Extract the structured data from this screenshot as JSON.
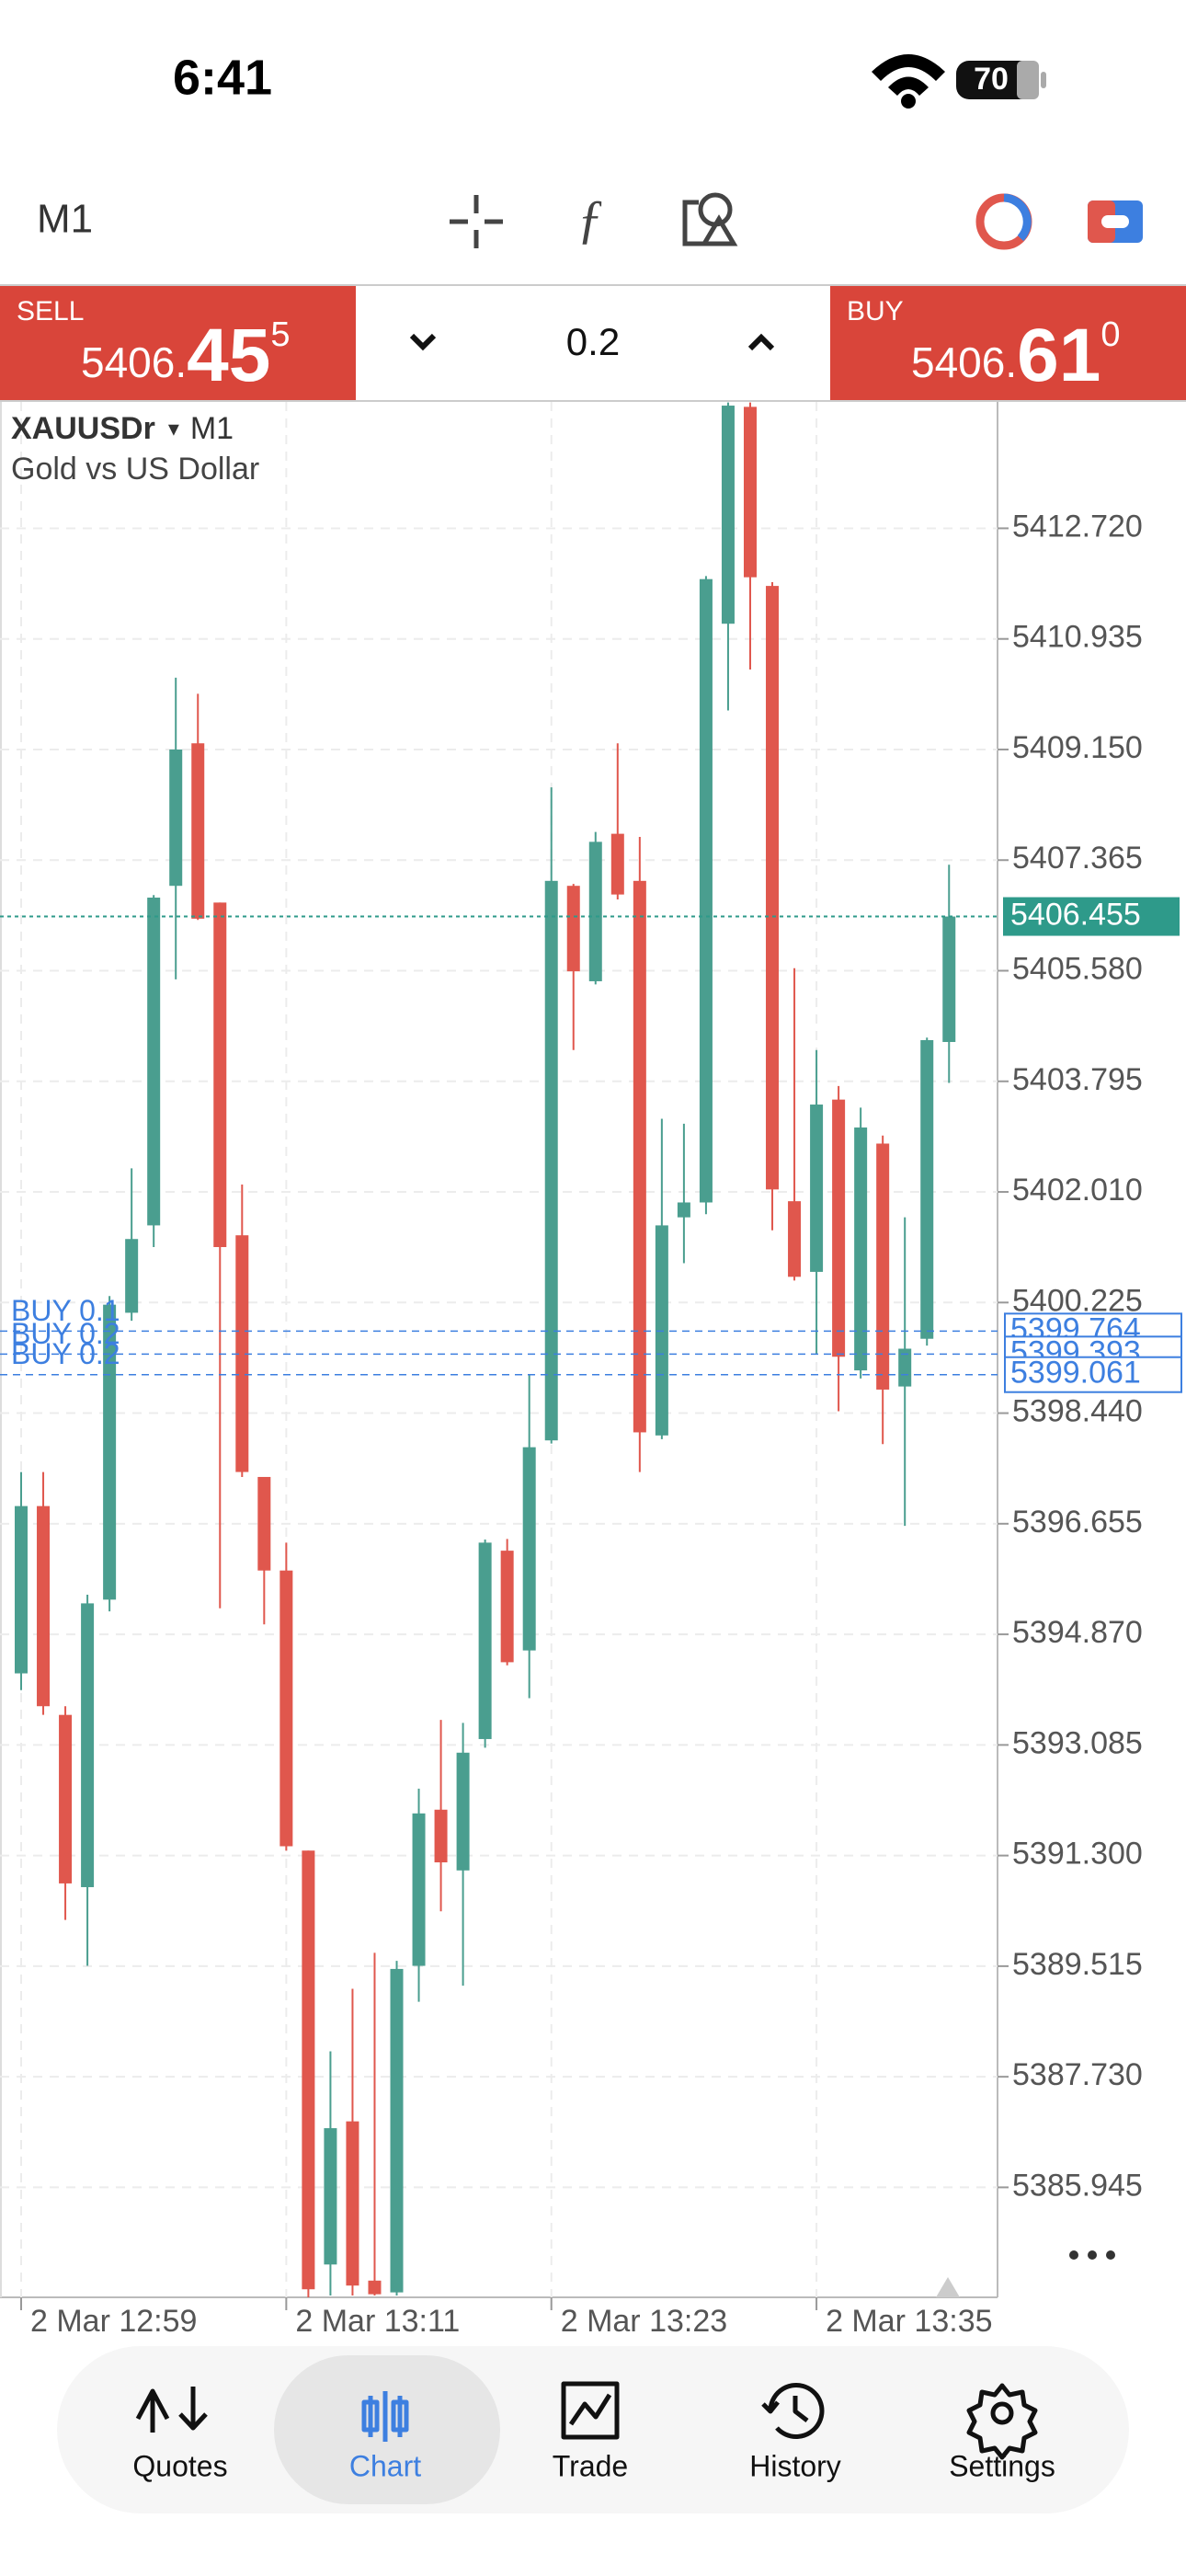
{
  "status_bar": {
    "time": "6:41",
    "battery": "70"
  },
  "toolbar": {
    "timeframe": "M1"
  },
  "trade_panel": {
    "sell": {
      "label": "SELL",
      "price_main": "5406.",
      "price_big": "45",
      "price_sup": "5"
    },
    "volume": "0.2",
    "buy": {
      "label": "BUY",
      "price_main": "5406.",
      "price_big": "61",
      "price_sup": "0"
    }
  },
  "chart_data": {
    "type": "candlestick",
    "symbol": "XAUUSDr",
    "symbol_marker": "▾",
    "timeframe": "M1",
    "description": "Gold vs US Dollar",
    "categories": [
      "2 Mar 12:59",
      null,
      null,
      null,
      null,
      null,
      null,
      null,
      null,
      null,
      null,
      null,
      "2 Mar 13:11",
      null,
      null,
      null,
      null,
      null,
      null,
      null,
      null,
      null,
      null,
      null,
      "2 Mar 13:23",
      null,
      null,
      null,
      null,
      null,
      null,
      null,
      null,
      null,
      null,
      null,
      "2 Mar 13:35",
      null,
      null,
      null,
      null,
      null,
      null
    ],
    "open": [
      5394.24,
      5396.94,
      5393.57,
      5390.79,
      5395.43,
      5400.06,
      5401.47,
      5406.95,
      5409.25,
      5406.68,
      5401.31,
      5397.41,
      5395.9,
      5391.38,
      5384.7,
      5387.01,
      5384.44,
      5384.25,
      5389.52,
      5392.04,
      5391.06,
      5393.18,
      5396.22,
      5394.61,
      5398.0,
      5406.95,
      5405.41,
      5407.79,
      5407.03,
      5398.08,
      5401.6,
      5401.84,
      5411.18,
      5414.68,
      5411.79,
      5401.86,
      5400.72,
      5403.5,
      5399.13,
      5402.79,
      5398.87,
      5399.64,
      5404.43
    ],
    "high": [
      5397.49,
      5397.49,
      5393.71,
      5395.51,
      5400.33,
      5402.39,
      5406.8,
      5410.31,
      5410.05,
      5406.68,
      5402.13,
      5397.41,
      5396.35,
      5391.38,
      5388.14,
      5389.15,
      5389.73,
      5389.6,
      5392.38,
      5393.49,
      5393.44,
      5396.4,
      5396.41,
      5399.06,
      5408.54,
      5406.98,
      5407.82,
      5409.25,
      5407.74,
      5403.19,
      5403.11,
      5411.95,
      5414.75,
      5414.75,
      5411.85,
      5405.62,
      5404.3,
      5403.72,
      5403.37,
      5402.92,
      5401.6,
      5404.5,
      5407.29
    ],
    "low": [
      5393.97,
      5393.57,
      5390.26,
      5389.52,
      5395.24,
      5399.93,
      5401.12,
      5405.44,
      5406.4,
      5395.29,
      5397.41,
      5395.03,
      5391.38,
      5384.17,
      5384.2,
      5384.2,
      5384.2,
      5384.2,
      5388.94,
      5390.4,
      5389.2,
      5393.04,
      5394.37,
      5393.84,
      5397.95,
      5404.3,
      5405.36,
      5406.73,
      5397.49,
      5398.02,
      5400.86,
      5401.65,
      5409.78,
      5410.44,
      5401.39,
      5400.58,
      5399.4,
      5398.47,
      5399.0,
      5397.94,
      5396.62,
      5399.53,
      5403.77
    ],
    "close": [
      5396.94,
      5393.71,
      5390.85,
      5395.37,
      5400.19,
      5401.25,
      5406.76,
      5409.15,
      5406.42,
      5401.12,
      5397.49,
      5395.9,
      5391.45,
      5384.3,
      5386.9,
      5384.36,
      5384.22,
      5389.47,
      5391.98,
      5391.19,
      5392.96,
      5396.35,
      5394.42,
      5397.89,
      5407.03,
      5405.57,
      5407.66,
      5406.81,
      5398.13,
      5401.47,
      5401.84,
      5411.9,
      5414.7,
      5411.93,
      5402.05,
      5400.64,
      5403.42,
      5399.35,
      5403.05,
      5398.82,
      5399.48,
      5404.46,
      5406.455
    ],
    "up_color": "#4a9e8f",
    "down_color": "#e0574d",
    "ylim": [
      5384.17,
      5414.76
    ],
    "yticks": [
      {
        "value": 5412.72,
        "label": "5412.720"
      },
      5410.935,
      {
        "value": 5409.15,
        "label": "5409.150"
      },
      5407.365,
      {
        "value": 5405.58,
        "label": "5405.580"
      },
      5403.795,
      {
        "value": 5402.01,
        "label": "5402.010"
      },
      5400.225,
      {
        "value": 5398.44,
        "label": "5398.440"
      },
      5396.655,
      {
        "value": 5394.87,
        "label": "5394.870"
      },
      5393.085,
      {
        "value": 5391.3,
        "label": "5391.300"
      },
      5389.515,
      {
        "value": 5387.73,
        "label": "5387.730"
      },
      5385.945
    ],
    "grid": true,
    "current_price": {
      "value": 5406.455,
      "color": "#2e9a8a"
    },
    "orders": [
      {
        "name": "BUY 0.1",
        "price": 5399.764
      },
      {
        "name": "BUY 0.2",
        "price": 5399.393
      },
      {
        "name": "BUY 0.2",
        "price": 5399.061
      }
    ],
    "order_color": "#3d7fe0"
  },
  "nav": {
    "items": [
      "Quotes",
      "Chart",
      "Trade",
      "History",
      "Settings"
    ],
    "active": "Chart"
  }
}
